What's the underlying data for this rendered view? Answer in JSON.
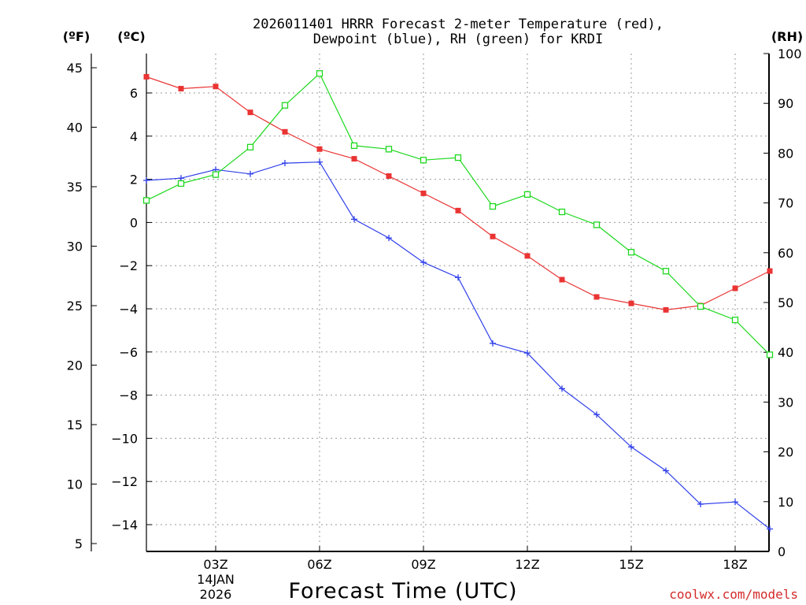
{
  "chart_data": {
    "type": "line",
    "title_line1": "2026011401 HRRR Forecast 2-meter Temperature (red),",
    "title_line2": "Dewpoint (blue), RH (green) for KRDI",
    "xlabel": "Forecast Time (UTC)",
    "credit": "coolwx.com/models",
    "units": {
      "f": "(ºF)",
      "c": "(ºC)",
      "rh": "(RH)"
    },
    "x_ticks": [
      {
        "x": 3,
        "label": "03Z",
        "sub1": "14JAN",
        "sub2": "2026"
      },
      {
        "x": 6,
        "label": "06Z"
      },
      {
        "x": 9,
        "label": "09Z"
      },
      {
        "x": 12,
        "label": "12Z"
      },
      {
        "x": 15,
        "label": "15Z"
      },
      {
        "x": 18,
        "label": "18Z"
      }
    ],
    "xlim": [
      1,
      19
    ],
    "c_ticks": [
      "6",
      "4",
      "2",
      "0",
      "−2",
      "−4",
      "−6",
      "−8",
      "−10",
      "−12",
      "−14"
    ],
    "c_values": [
      6,
      4,
      2,
      0,
      -2,
      -4,
      -6,
      -8,
      -10,
      -12,
      -14
    ],
    "ylim_c": [
      -15,
      7
    ],
    "f_ticks": [
      "45",
      "40",
      "35",
      "30",
      "25",
      "20",
      "15",
      "10",
      "5"
    ],
    "f_values": [
      45,
      40,
      35,
      30,
      25,
      20,
      15,
      10,
      5
    ],
    "rh_ticks": [
      "100",
      "90",
      "80",
      "70",
      "60",
      "50",
      "40",
      "30",
      "20",
      "10",
      "0"
    ],
    "rh_values": [
      100,
      90,
      80,
      70,
      60,
      50,
      40,
      30,
      20,
      10,
      0
    ],
    "x": [
      1,
      2,
      3,
      4,
      5,
      6,
      7,
      8,
      9,
      10,
      11,
      12,
      13,
      14,
      15,
      16,
      17,
      18,
      19
    ],
    "series": [
      {
        "name": "Temperature",
        "color": "#ea3434",
        "marker": "filled-square",
        "axis": "c",
        "values": [
          6.75,
          6.2,
          6.3,
          5.1,
          4.2,
          3.4,
          2.95,
          2.15,
          1.35,
          0.55,
          -0.65,
          -1.55,
          -2.65,
          -3.45,
          -3.75,
          -4.05,
          -3.85,
          -3.05,
          -2.25
        ]
      },
      {
        "name": "Dewpoint",
        "color": "#2f3fea",
        "marker": "plus",
        "axis": "c",
        "values": [
          1.95,
          2.05,
          2.45,
          2.25,
          2.75,
          2.8,
          0.15,
          -0.72,
          -1.85,
          -2.55,
          -5.6,
          -6.05,
          -7.7,
          -8.9,
          -10.4,
          -11.5,
          -13.05,
          -12.95,
          -14.2
        ]
      },
      {
        "name": "RH",
        "color": "#1ed81e",
        "marker": "open-square",
        "axis": "rh",
        "values": [
          70.5,
          73.9,
          75.7,
          81.2,
          89.6,
          96.0,
          81.5,
          80.8,
          78.6,
          79.1,
          69.3,
          71.7,
          68.2,
          65.6,
          60.1,
          56.3,
          49.2,
          46.5,
          39.5
        ]
      }
    ]
  }
}
